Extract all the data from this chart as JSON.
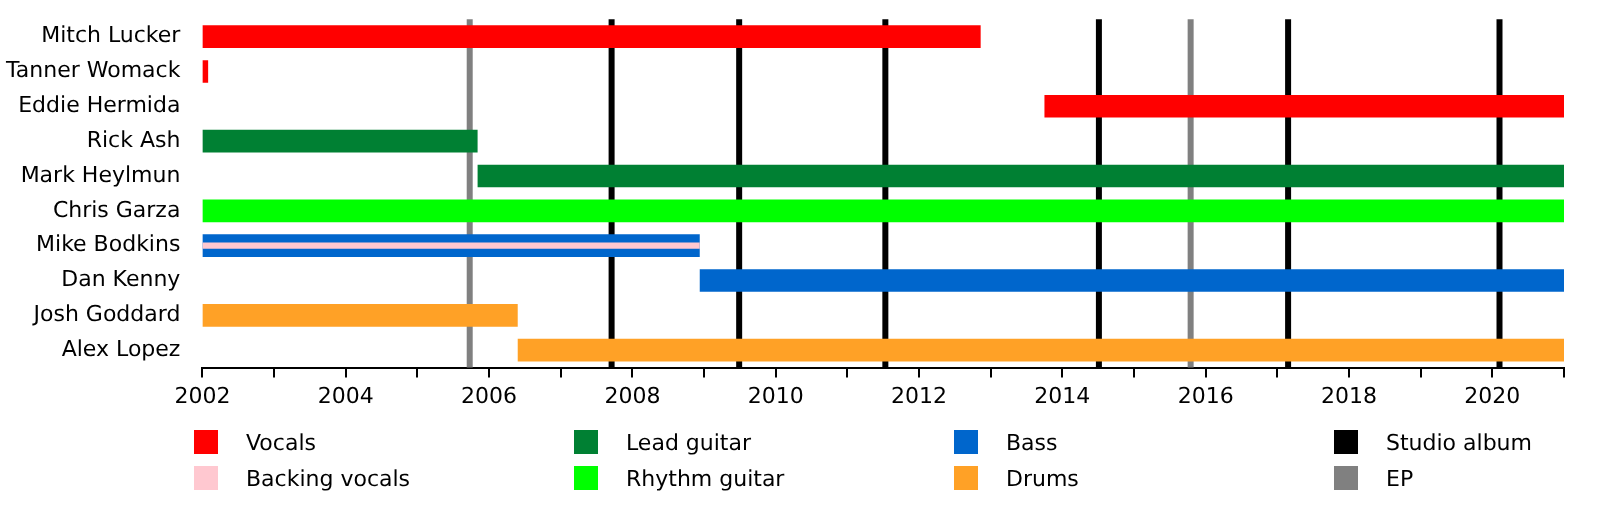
{
  "chart_data": {
    "type": "bar",
    "orientation": "horizontal",
    "legend": "bottom",
    "grid": false,
    "categories": [
      "Mitch Lucker",
      "Tanner Womack",
      "Eddie Hermida",
      "Rick Ash",
      "Mark Heylmun",
      "Chris Garza",
      "Mike Bodkins",
      "Dan Kenny",
      "Josh Goddard",
      "Alex Lopez"
    ],
    "xlim": [
      2002,
      2021
    ],
    "xticks": [
      2002,
      {
        "value": 2003,
        "label": null
      },
      2004,
      {
        "value": 2005,
        "label": null
      },
      2006,
      {
        "value": 2007,
        "label": null
      },
      2008,
      {
        "value": 2009,
        "label": null
      },
      2010,
      {
        "value": 2011,
        "label": null
      },
      2012,
      {
        "value": 2013,
        "label": null
      },
      2014,
      {
        "value": 2015,
        "label": null
      },
      2016,
      {
        "value": 2017,
        "label": null
      },
      2018,
      {
        "value": 2019,
        "label": null
      },
      2020,
      {
        "value": 2021,
        "label": null
      }
    ],
    "series": [
      {
        "name": "Vocals",
        "color": "#ff0000",
        "base": [
          2002,
          2002,
          2013.75,
          null,
          null,
          null,
          null,
          null,
          null,
          null
        ],
        "values": [
          10.86,
          0.08,
          7.25,
          null,
          null,
          null,
          null,
          null,
          null,
          null
        ]
      },
      {
        "name": "Backing vocals",
        "color": "#ffc8d0",
        "base": [
          null,
          null,
          null,
          null,
          null,
          null,
          2002,
          null,
          null,
          null
        ],
        "values": [
          null,
          null,
          null,
          null,
          null,
          null,
          6.94,
          null,
          null,
          null
        ]
      },
      {
        "name": "Lead guitar",
        "color": "#008033",
        "base": [
          null,
          null,
          null,
          2002,
          2005.84,
          null,
          null,
          null,
          null,
          null
        ],
        "values": [
          null,
          null,
          null,
          3.84,
          15.16,
          null,
          null,
          null,
          null,
          null
        ]
      },
      {
        "name": "Rhythm guitar",
        "color": "#00ff00",
        "base": [
          null,
          null,
          null,
          null,
          null,
          2002,
          null,
          null,
          null,
          null
        ],
        "values": [
          null,
          null,
          null,
          null,
          null,
          19,
          null,
          null,
          null,
          null
        ]
      },
      {
        "name": "Bass",
        "color": "#0066cc",
        "base": [
          null,
          null,
          null,
          null,
          null,
          null,
          2002,
          2008.94,
          null,
          null
        ],
        "values": [
          null,
          null,
          null,
          null,
          null,
          null,
          6.94,
          12.06,
          null,
          null
        ]
      },
      {
        "name": "Drums",
        "color": "#ffa126",
        "base": [
          null,
          null,
          null,
          null,
          null,
          null,
          null,
          null,
          2002,
          2006.4
        ],
        "values": [
          null,
          null,
          null,
          null,
          null,
          null,
          null,
          null,
          4.4,
          14.6
        ]
      }
    ],
    "ref_lines": [
      {
        "axis": "x",
        "value": 2005.73,
        "label": "EP",
        "color": "#808080"
      },
      {
        "axis": "x",
        "value": 2007.71,
        "label": "Studio album",
        "color": "#000000"
      },
      {
        "axis": "x",
        "value": 2009.49,
        "color": "#000000"
      },
      {
        "axis": "x",
        "value": 2011.53,
        "color": "#000000"
      },
      {
        "axis": "x",
        "value": 2014.51,
        "color": "#000000"
      },
      {
        "axis": "x",
        "value": 2015.79,
        "color": "#808080"
      },
      {
        "axis": "x",
        "value": 2017.15,
        "color": "#000000"
      },
      {
        "axis": "x",
        "value": 2020.1,
        "color": "#000000"
      }
    ]
  }
}
